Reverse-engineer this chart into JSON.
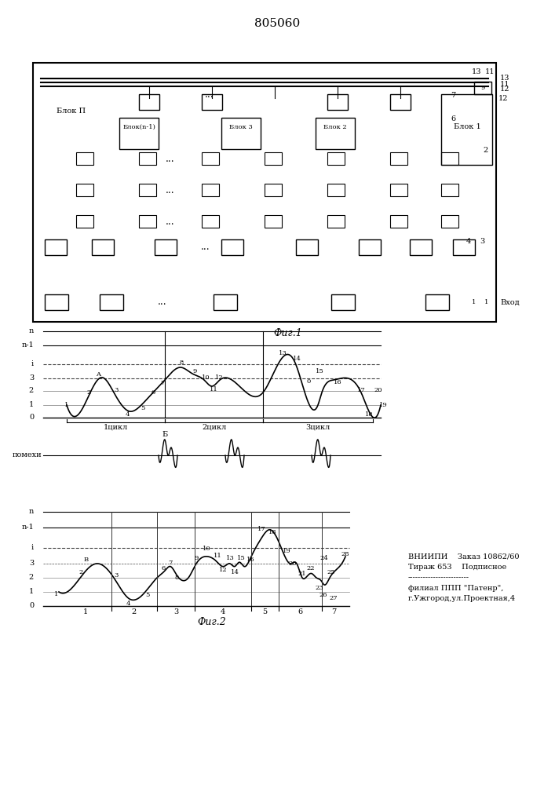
{
  "title": "805060",
  "fig1_caption": "Фиг.1",
  "fig2_caption": "Фиг.2",
  "bg_color": "#ffffff",
  "line_color": "#000000",
  "dashed_color": "#555555",
  "vniipi_text": "ВНИИПИ    Заказ 10862/60\nТираж 653    Подписное\n------------------------\nфилиал ППП \"Патенр\",\nг.Ужгород,ул.Проектная,4"
}
